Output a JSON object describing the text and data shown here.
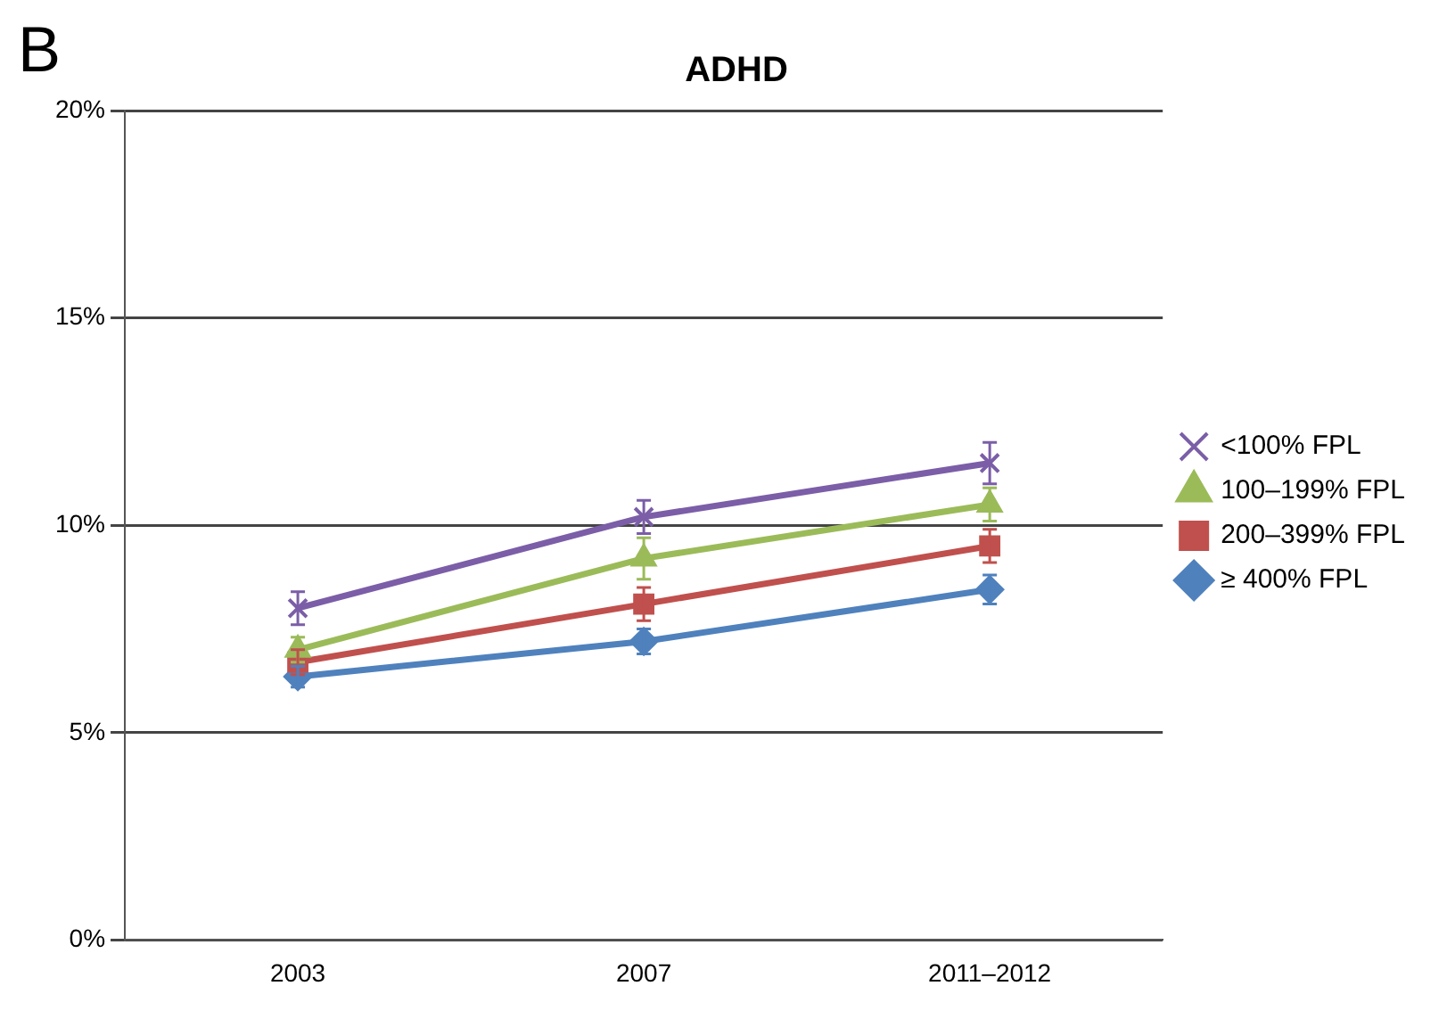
{
  "chart_data": {
    "type": "line",
    "title": "ADHD",
    "annotations": [
      "B"
    ],
    "categories": [
      "2003",
      "2007",
      "2011–2012"
    ],
    "series": [
      {
        "name": "<100% FPL",
        "color": "#7b5ea7",
        "marker": "cross",
        "values": [
          8.0,
          10.2,
          11.5
        ],
        "errors": [
          0.4,
          0.4,
          0.5
        ]
      },
      {
        "name": "100–199% FPL",
        "color": "#9bbb59",
        "marker": "triangle",
        "values": [
          7.0,
          9.2,
          10.5
        ],
        "errors": [
          0.3,
          0.5,
          0.4
        ]
      },
      {
        "name": "200–399% FPL",
        "color": "#c0504d",
        "marker": "square",
        "values": [
          6.7,
          8.1,
          9.5
        ],
        "errors": [
          0.3,
          0.4,
          0.4
        ]
      },
      {
        "name": "≥ 400% FPL",
        "color": "#4f81bd",
        "marker": "diamond",
        "values": [
          6.35,
          7.2,
          8.45
        ],
        "errors": [
          0.25,
          0.3,
          0.35
        ]
      }
    ],
    "ylim": [
      0,
      20
    ],
    "yticks": [
      {
        "value": 0,
        "label": "0%"
      },
      {
        "value": 5,
        "label": "5%"
      },
      {
        "value": 10,
        "label": "10%"
      },
      {
        "value": 15,
        "label": "15%"
      },
      {
        "value": 20,
        "label": "20%"
      }
    ],
    "grid": "y",
    "legend": "right",
    "line_style": "solid"
  }
}
